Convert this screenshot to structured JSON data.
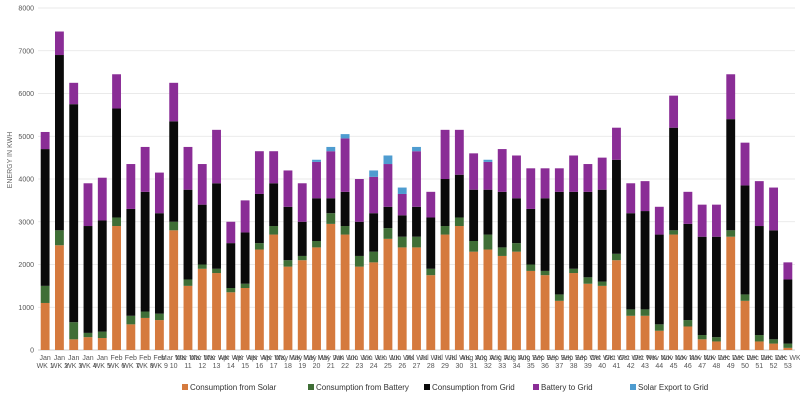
{
  "chart_data": {
    "type": "bar",
    "stacked": true,
    "title": "",
    "xlabel": "",
    "ylabel": "ENERGY IN KWH",
    "ylim": [
      0,
      8000
    ],
    "yticks": [
      0,
      1000,
      2000,
      3000,
      4000,
      5000,
      6000,
      7000,
      8000
    ],
    "grid": true,
    "legend_position": "bottom",
    "categories": [
      "Jan WK 1",
      "Jan WK 2",
      "Jan WK 3",
      "Jan WK 4",
      "Jan WK 5",
      "Feb WK 6",
      "Feb WK 7",
      "Feb WK 8",
      "Feb WK 9",
      "Mar WK 10",
      "Mar WK 11",
      "Mar WK 12",
      "Mar WK 13",
      "Apr WK 14",
      "Apr WK 15",
      "Apr WK 16",
      "Apr WK 17",
      "May WK 18",
      "May WK 19",
      "May WK 20",
      "May WK 21",
      "Jun WK 22",
      "Jun WK 23",
      "Jun WK 24",
      "Jun WK 25",
      "Jun WK 26",
      "Jul WK 27",
      "Jul WK 28",
      "Jul WK 29",
      "Jul WK 30",
      "Aug WK 31",
      "Aug WK 32",
      "Aug WK 33",
      "Aug WK 34",
      "Aug WK 35",
      "Sep WK 36",
      "Sep WK 37",
      "Sep WK 38",
      "Sep WK 39",
      "Oct WK 40",
      "Oct WK 41",
      "Oct WK 42",
      "Oct WK 43",
      "Nov WK 44",
      "Nov WK 45",
      "Nov WK 46",
      "Nov WK 47",
      "Nov WK 48",
      "Dec WK 49",
      "Dec WK 50",
      "Dec WK 51",
      "Dec WK 52",
      "Dec WK 53"
    ],
    "series": [
      {
        "name": "Consumption from Solar",
        "color": "#D57A3E",
        "values": [
          1100,
          2450,
          250,
          300,
          280,
          2900,
          600,
          750,
          700,
          2800,
          1500,
          1900,
          1800,
          1350,
          1450,
          2350,
          2700,
          1950,
          2100,
          2400,
          2950,
          2700,
          1950,
          2050,
          2600,
          2400,
          2400,
          1750,
          2700,
          2900,
          2300,
          2350,
          2200,
          2300,
          1850,
          1750,
          1150,
          1800,
          1550,
          1500,
          2100,
          800,
          800,
          450,
          2700,
          550,
          250,
          200,
          2650,
          1150,
          200,
          150,
          50
        ]
      },
      {
        "name": "Consumption from Battery",
        "color": "#3F6E36",
        "values": [
          400,
          350,
          400,
          100,
          150,
          200,
          200,
          150,
          150,
          200,
          150,
          100,
          100,
          100,
          100,
          150,
          200,
          150,
          100,
          150,
          250,
          200,
          250,
          250,
          250,
          250,
          250,
          150,
          200,
          200,
          250,
          350,
          200,
          200,
          150,
          100,
          150,
          100,
          150,
          100,
          150,
          150,
          150,
          150,
          100,
          150,
          100,
          100,
          150,
          150,
          150,
          100,
          100
        ]
      },
      {
        "name": "Consumption from Grid",
        "color": "#0A0A0A",
        "values": [
          3200,
          4100,
          5100,
          2500,
          2600,
          2550,
          2500,
          2800,
          2350,
          2350,
          2100,
          1400,
          2000,
          1050,
          1200,
          1150,
          1000,
          1250,
          800,
          1000,
          350,
          800,
          800,
          900,
          500,
          500,
          700,
          1200,
          1100,
          1000,
          1200,
          1050,
          1300,
          1050,
          1300,
          1700,
          2400,
          1800,
          2000,
          2150,
          2200,
          2250,
          2300,
          2100,
          2400,
          2250,
          2300,
          2350,
          2600,
          2550,
          2550,
          2550,
          1500
        ]
      },
      {
        "name": "Battery to Grid",
        "color": "#8A2D96",
        "values": [
          400,
          550,
          500,
          1000,
          1000,
          800,
          1050,
          1050,
          950,
          900,
          1000,
          950,
          1250,
          500,
          750,
          1000,
          750,
          850,
          900,
          850,
          1100,
          1250,
          1000,
          850,
          1000,
          500,
          1300,
          600,
          1150,
          1050,
          850,
          650,
          1000,
          1000,
          950,
          700,
          550,
          850,
          650,
          750,
          750,
          700,
          700,
          650,
          750,
          750,
          750,
          750,
          1050,
          1000,
          1050,
          1000,
          400
        ]
      },
      {
        "name": "Solar Export to Grid",
        "color": "#4E9CD0",
        "values": [
          0,
          0,
          0,
          0,
          0,
          0,
          0,
          0,
          0,
          0,
          0,
          0,
          0,
          0,
          0,
          0,
          0,
          0,
          0,
          50,
          100,
          100,
          0,
          150,
          200,
          150,
          100,
          0,
          0,
          0,
          0,
          50,
          0,
          0,
          0,
          0,
          0,
          0,
          0,
          0,
          0,
          0,
          0,
          0,
          0,
          0,
          0,
          0,
          0,
          0,
          0,
          0,
          0
        ]
      }
    ]
  }
}
